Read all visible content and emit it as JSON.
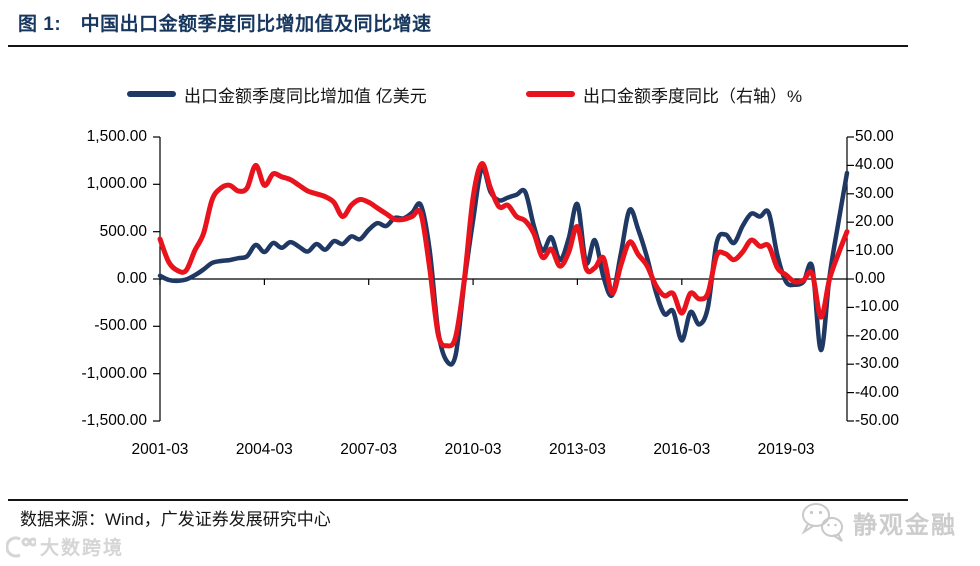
{
  "header": {
    "title": "图 1:　中国出口金额季度同比增加值及同比增速"
  },
  "legend": [
    {
      "label": "出口金额季度同比增加值 亿美元",
      "color": "#1f3864"
    },
    {
      "label": "出口金额季度同比（右轴）%",
      "color": "#e8131c"
    }
  ],
  "footer": {
    "source": "数据来源：Wind，广发证券发展研究中心",
    "watermark_left": "大数跨境",
    "watermark_right": "静观金融"
  },
  "chart_data": {
    "type": "line",
    "title": "中国出口金额季度同比增加值及同比增速",
    "grid": false,
    "legend_position": "top",
    "x_tick_labels": [
      "2001-03",
      "2004-03",
      "2007-03",
      "2010-03",
      "2013-03",
      "2016-03",
      "2019-03"
    ],
    "categories": [
      "2001-03",
      "2001-06",
      "2001-09",
      "2001-12",
      "2002-03",
      "2002-06",
      "2002-09",
      "2002-12",
      "2003-03",
      "2003-06",
      "2003-09",
      "2003-12",
      "2004-03",
      "2004-06",
      "2004-09",
      "2004-12",
      "2005-03",
      "2005-06",
      "2005-09",
      "2005-12",
      "2006-03",
      "2006-06",
      "2006-09",
      "2006-12",
      "2007-03",
      "2007-06",
      "2007-09",
      "2007-12",
      "2008-03",
      "2008-06",
      "2008-09",
      "2008-12",
      "2009-03",
      "2009-06",
      "2009-09",
      "2009-12",
      "2010-03",
      "2010-06",
      "2010-09",
      "2010-12",
      "2011-03",
      "2011-06",
      "2011-09",
      "2011-12",
      "2012-03",
      "2012-06",
      "2012-09",
      "2012-12",
      "2013-03",
      "2013-06",
      "2013-09",
      "2013-12",
      "2014-03",
      "2014-06",
      "2014-09",
      "2014-12",
      "2015-03",
      "2015-06",
      "2015-09",
      "2015-12",
      "2016-03",
      "2016-06",
      "2016-09",
      "2016-12",
      "2017-03",
      "2017-06",
      "2017-09",
      "2017-12",
      "2018-03",
      "2018-06",
      "2018-09",
      "2018-12",
      "2019-03",
      "2019-06",
      "2019-09",
      "2019-12",
      "2020-03",
      "2020-06",
      "2020-09",
      "2020-12"
    ],
    "series": [
      {
        "name": "出口金额季度同比增加值 亿美元",
        "axis": "left",
        "color": "#1f3864",
        "values": [
          35,
          -10,
          -20,
          -5,
          40,
          100,
          170,
          190,
          200,
          220,
          240,
          360,
          285,
          380,
          330,
          390,
          340,
          290,
          370,
          310,
          400,
          370,
          450,
          420,
          520,
          590,
          560,
          645,
          640,
          700,
          780,
          310,
          -560,
          -870,
          -800,
          -30,
          620,
          1170,
          920,
          830,
          860,
          890,
          920,
          560,
          300,
          440,
          200,
          430,
          790,
          170,
          410,
          20,
          -170,
          270,
          730,
          520,
          230,
          -130,
          -370,
          -340,
          -650,
          -350,
          -480,
          -300,
          380,
          470,
          380,
          560,
          690,
          660,
          700,
          250,
          -30,
          -60,
          -30,
          130,
          -750,
          30,
          590,
          1120
        ]
      },
      {
        "name": "出口金额季度同比（右轴）%",
        "axis": "right",
        "color": "#e8131c",
        "values": [
          14.1,
          6,
          3,
          3,
          10,
          16,
          28,
          32,
          33,
          31,
          32,
          40,
          33,
          37,
          36,
          35,
          33,
          31,
          30,
          29,
          27,
          22,
          26,
          28,
          27,
          25,
          23,
          21,
          21,
          22,
          23,
          4,
          -19.7,
          -23.5,
          -20.3,
          0,
          28.7,
          40.6,
          32,
          25.4,
          26,
          22,
          20.5,
          16,
          7.6,
          10.5,
          4.5,
          9.4,
          18.4,
          3.7,
          3.9,
          7.4,
          -5,
          4.9,
          13,
          8.6,
          4.7,
          -2.2,
          -5.9,
          -5.1,
          -12,
          -5,
          -7,
          -5,
          8.2,
          8.9,
          6.8,
          9.5,
          13.7,
          11.5,
          11.7,
          3.9,
          1.4,
          -1,
          -0.4,
          1.9,
          -13.4,
          0.1,
          8.8,
          16.7
        ]
      }
    ],
    "left_axis": {
      "range": [
        -1500,
        1500
      ],
      "tick_values": [
        1500,
        1000,
        500,
        0,
        -500,
        -1000,
        -1500
      ],
      "ticks": [
        "1,500.00",
        "1,000.00",
        "500.00",
        "0.00",
        "-500.00",
        "-1,000.00",
        "-1,500.00"
      ]
    },
    "right_axis": {
      "range": [
        -50,
        50
      ],
      "tick_values": [
        50,
        40,
        30,
        20,
        10,
        0,
        -10,
        -20,
        -30,
        -40,
        -50
      ],
      "ticks": [
        "50.00",
        "40.00",
        "30.00",
        "20.00",
        "10.00",
        "0.00",
        "-10.00",
        "-20.00",
        "-30.00",
        "-40.00",
        "-50.00"
      ]
    }
  }
}
